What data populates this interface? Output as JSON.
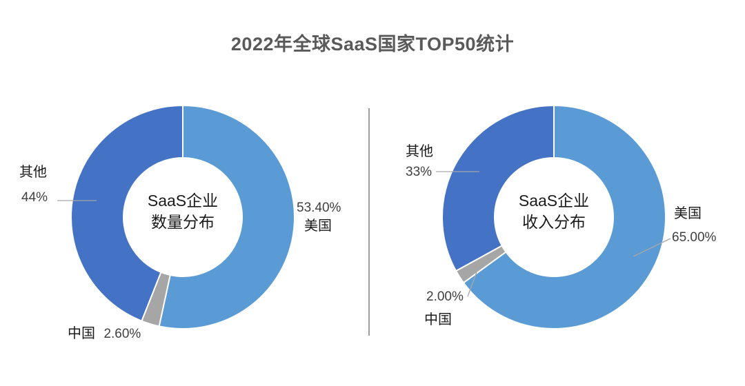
{
  "title": "2022年全球SaaS国家TOP50统计",
  "style": {
    "title_color": "#595959",
    "name_color": "#1a1a1a",
    "pct_color": "#3f3f3f",
    "leader_line_color": "#A6A6A6",
    "divider_color": "#9e9e9e",
    "background": "#ffffff"
  },
  "chart_data": [
    {
      "type": "pie",
      "variant": "donut",
      "title": "SaaS企业数量分布",
      "center_label": {
        "line1": "SaaS企业",
        "line2": "数量分布"
      },
      "start_angle_deg": 0,
      "direction": "clockwise",
      "unit": "%",
      "slices": [
        {
          "key": "us",
          "label": "美国",
          "value_pct": 53.4,
          "display": "53.40%",
          "color": "#5B9BD5"
        },
        {
          "key": "china",
          "label": "中国",
          "value_pct": 2.6,
          "display": "2.60%",
          "color": "#A6A6A6"
        },
        {
          "key": "other",
          "label": "其他",
          "value_pct": 44.0,
          "display": "44%",
          "color": "#4472C4"
        }
      ]
    },
    {
      "type": "pie",
      "variant": "donut",
      "title": "SaaS企业收入分布",
      "center_label": {
        "line1": "SaaS企业",
        "line2": "收入分布"
      },
      "start_angle_deg": 0,
      "direction": "clockwise",
      "unit": "%",
      "slices": [
        {
          "key": "us",
          "label": "美国",
          "value_pct": 65.0,
          "display": "65.00%",
          "color": "#5B9BD5"
        },
        {
          "key": "china",
          "label": "中国",
          "value_pct": 2.0,
          "display": "2.00%",
          "color": "#A6A6A6"
        },
        {
          "key": "other",
          "label": "其他",
          "value_pct": 33.0,
          "display": "33%",
          "color": "#4472C4"
        }
      ]
    }
  ]
}
